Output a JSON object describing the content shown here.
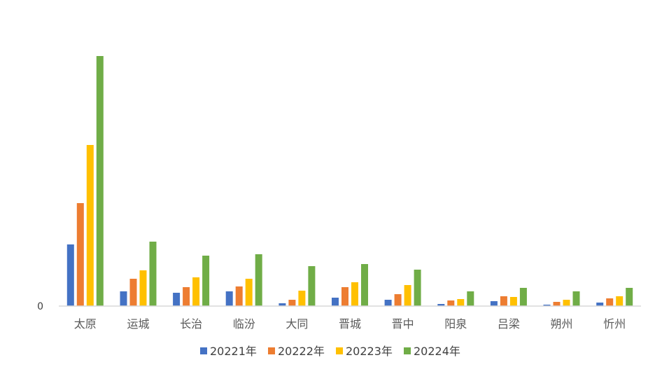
{
  "chart_data": {
    "type": "bar",
    "categories": [
      "太原",
      "运城",
      "长治",
      "临汾",
      "大同",
      "晋城",
      "晋中",
      "阳泉",
      "吕梁",
      "朔州",
      "忻州"
    ],
    "series": [
      {
        "name": "20221年",
        "color": "#4472C4",
        "values": [
          88,
          21,
          19,
          21,
          4,
          12,
          9,
          3,
          7,
          2,
          5
        ]
      },
      {
        "name": "20222年",
        "color": "#ED7D31",
        "values": [
          147,
          39,
          27,
          28,
          9,
          27,
          17,
          8,
          14,
          6,
          11
        ]
      },
      {
        "name": "20223年",
        "color": "#FFC000",
        "values": [
          230,
          51,
          41,
          39,
          22,
          34,
          30,
          10,
          13,
          9,
          14
        ]
      },
      {
        "name": "20224年",
        "color": "#70AD47",
        "values": [
          357,
          92,
          72,
          74,
          57,
          60,
          52,
          21,
          26,
          21,
          26
        ]
      }
    ],
    "y_ticks": [
      "0"
    ],
    "ylim": [
      0,
      400
    ],
    "grid": false,
    "legend_position": "bottom"
  }
}
